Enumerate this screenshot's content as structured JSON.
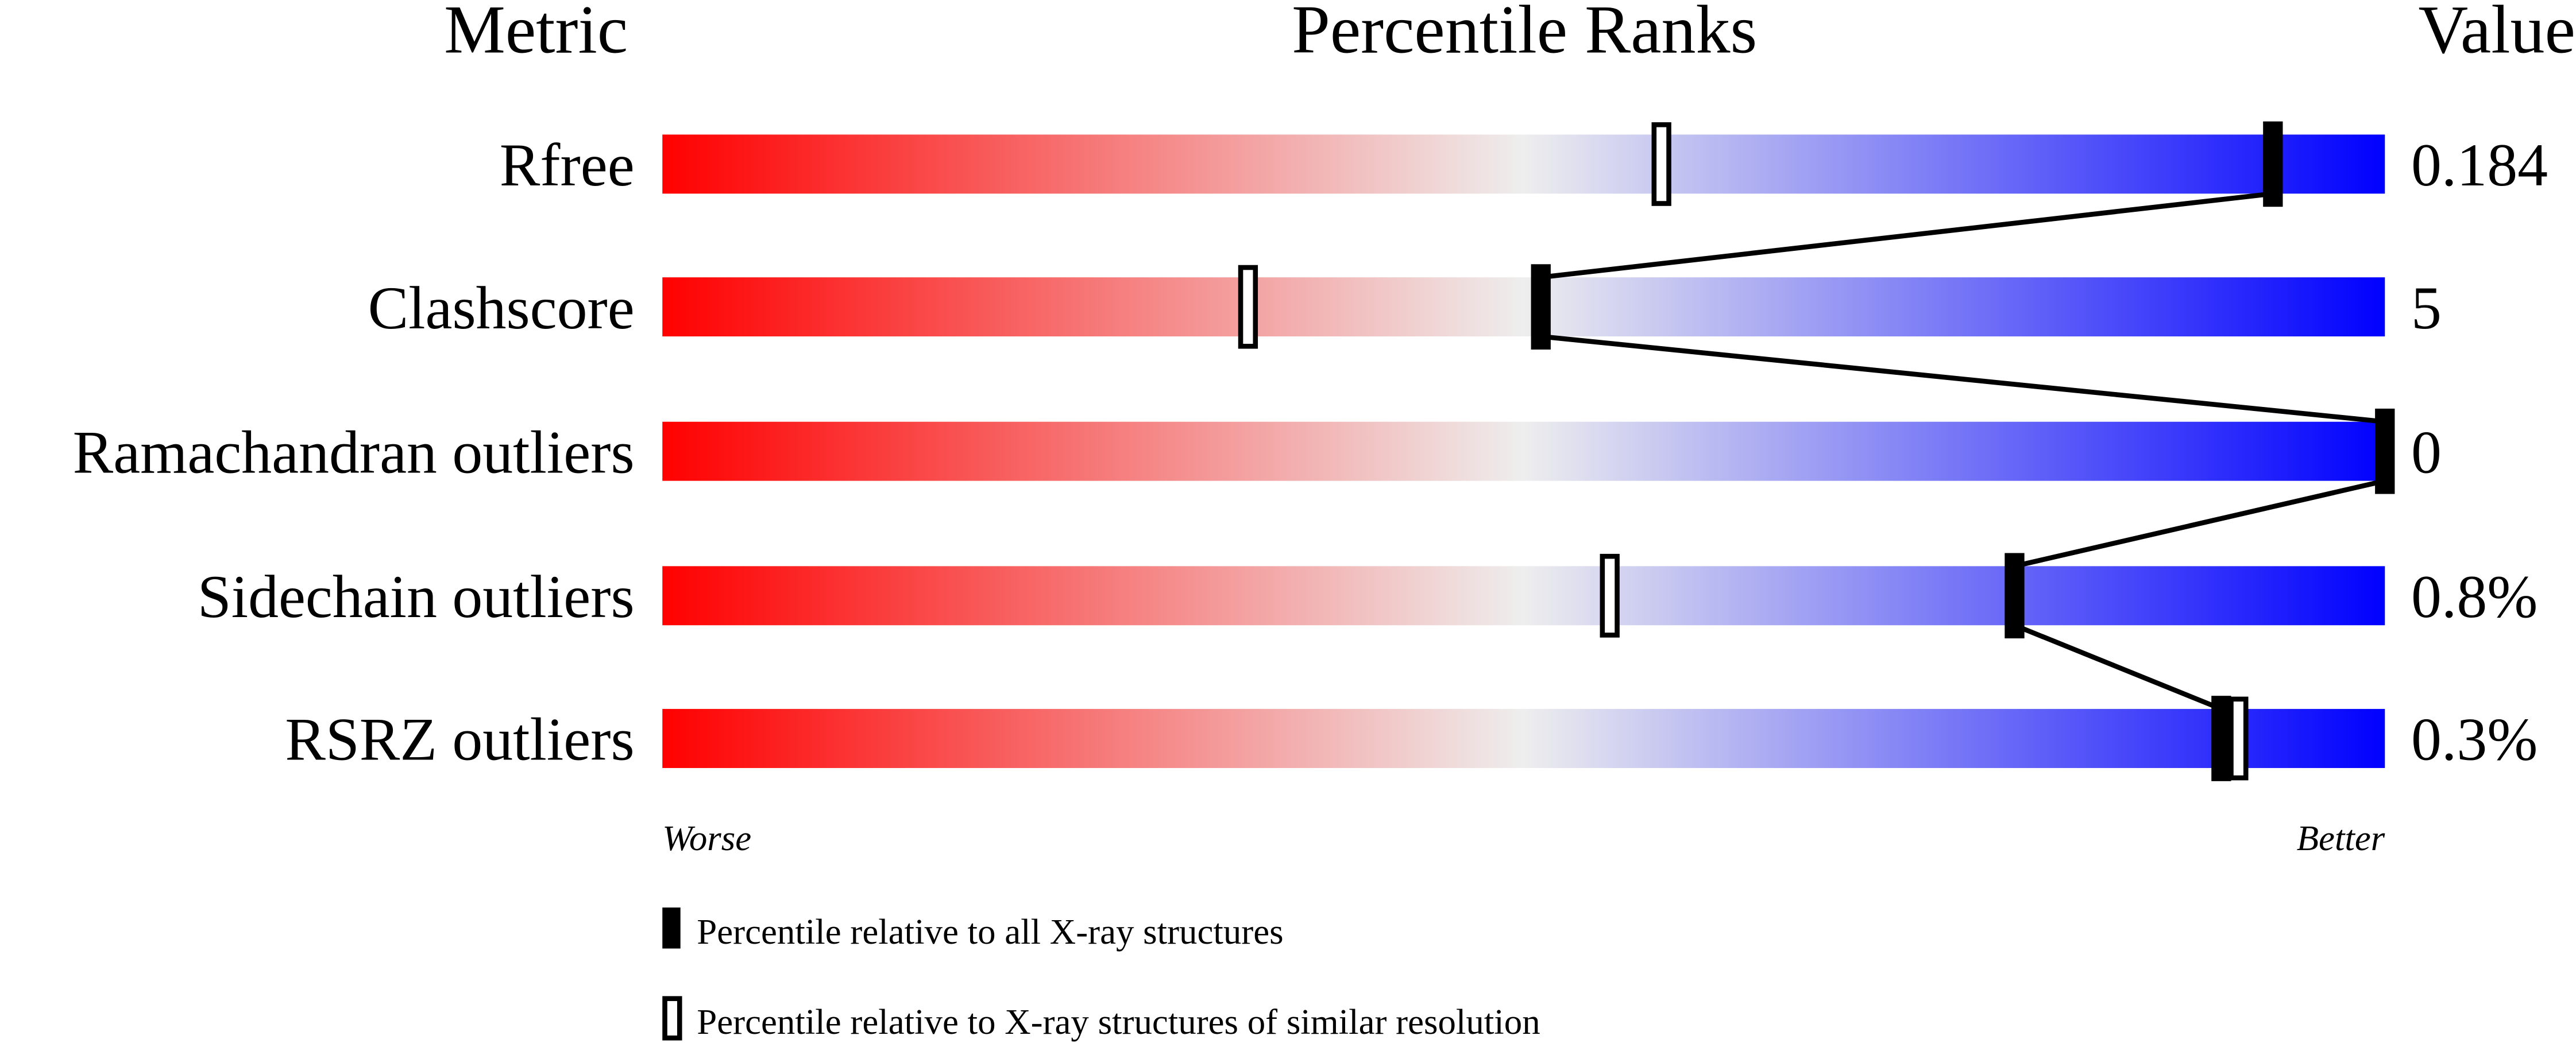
{
  "chart_data": {
    "type": "percentile-bars",
    "headers": {
      "metric": "Metric",
      "ranks": "Percentile Ranks",
      "value": "Value"
    },
    "xlim": [
      0,
      100
    ],
    "axis_ends": {
      "left": "Worse",
      "right": "Better"
    },
    "gradient_colors": [
      "#ff0000",
      "#eeeeee",
      "#0000ff"
    ],
    "metrics": [
      {
        "name": "Rfree",
        "value": "0.184",
        "percentile_all": 93.5,
        "percentile_similar": 58
      },
      {
        "name": "Clashscore",
        "value": "5",
        "percentile_all": 51,
        "percentile_similar": 34
      },
      {
        "name": "Ramachandran outliers",
        "value": "0",
        "percentile_all": 100,
        "percentile_similar": null
      },
      {
        "name": "Sidechain outliers",
        "value": "0.8%",
        "percentile_all": 78.5,
        "percentile_similar": 55
      },
      {
        "name": "RSRZ outliers",
        "value": "0.3%",
        "percentile_all": 90.5,
        "percentile_similar": 91.5
      }
    ],
    "legend": {
      "all": "Percentile relative to all X-ray structures",
      "similar": "Percentile relative to X-ray structures of similar resolution"
    }
  }
}
